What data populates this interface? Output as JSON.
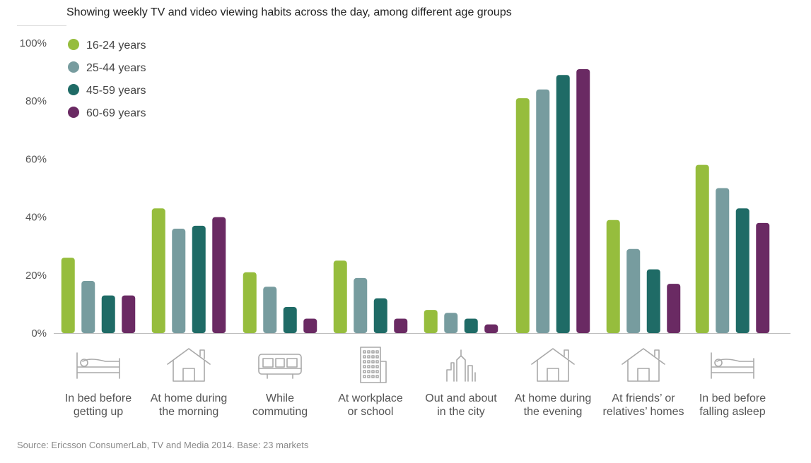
{
  "title": "Showing weekly TV and video viewing habits across the day, among different age groups",
  "source": "Source: Ericsson ConsumerLab, TV and Media 2014. Base: 23 markets",
  "chart_data": {
    "type": "bar",
    "title": "Showing weekly TV and video viewing habits across the day, among different age groups",
    "xlabel": "",
    "ylabel": "",
    "ylim": [
      0,
      100
    ],
    "yticks": [
      "0%",
      "20%",
      "40%",
      "60%",
      "80%",
      "100%"
    ],
    "yticks_values": [
      0,
      20,
      40,
      60,
      80,
      100
    ],
    "grid": false,
    "legend_position": "top-left",
    "categories": [
      [
        "In bed before",
        "getting up"
      ],
      [
        "At home during",
        "the morning"
      ],
      [
        "While",
        "commuting"
      ],
      [
        "At workplace",
        "or school"
      ],
      [
        "Out and about",
        "in the city"
      ],
      [
        "At home during",
        "the evening"
      ],
      [
        "At friends’ or",
        "relatives’ homes"
      ],
      [
        "In bed before",
        "falling asleep"
      ]
    ],
    "category_icons": [
      "bed-icon",
      "house-icon",
      "bus-icon",
      "office-building-icon",
      "city-skyline-icon",
      "house-icon",
      "house-icon",
      "bed-icon"
    ],
    "series": [
      {
        "name": "16-24 years",
        "color": "#96bd3d",
        "values": [
          26,
          43,
          21,
          25,
          8,
          81,
          39,
          58
        ]
      },
      {
        "name": "25-44 years",
        "color": "#779c9f",
        "values": [
          18,
          36,
          16,
          19,
          7,
          84,
          29,
          50
        ]
      },
      {
        "name": "45-59 years",
        "color": "#1f6b66",
        "values": [
          13,
          37,
          9,
          12,
          5,
          89,
          22,
          43
        ]
      },
      {
        "name": "60-69 years",
        "color": "#6a2a63",
        "values": [
          13,
          40,
          5,
          5,
          3,
          91,
          17,
          38
        ]
      }
    ]
  }
}
